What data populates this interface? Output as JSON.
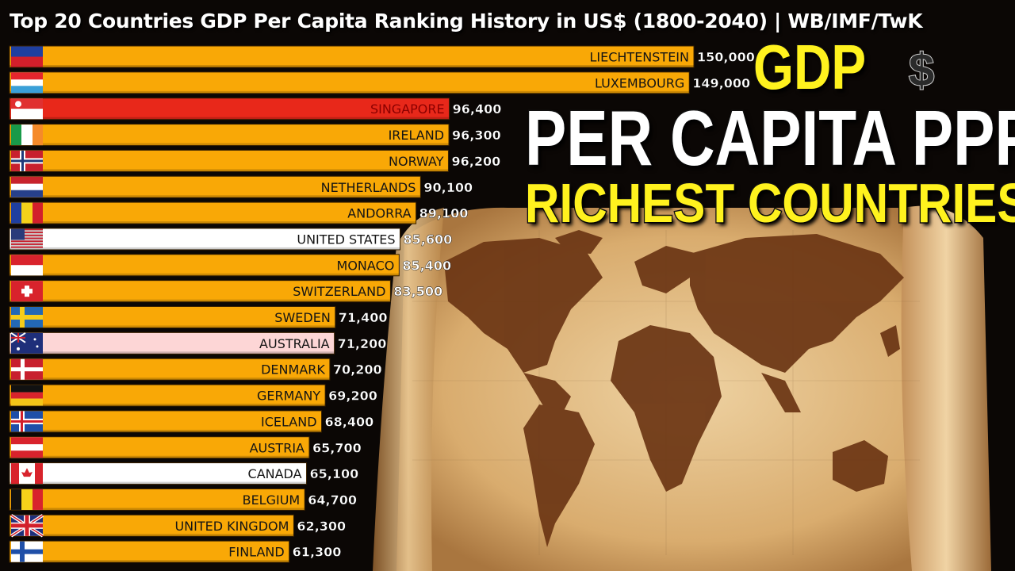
{
  "title": "Top 20 Countries GDP Per Capita Ranking History in US$ (1800-2040) | WB/IMF/TwK",
  "overlay": {
    "line1": "GDP",
    "line2": "PER CAPITA PPP",
    "line3": "RICHEST COUNTRIES",
    "symbol": "$"
  },
  "chart_data": {
    "type": "bar",
    "orientation": "horizontal",
    "title": "Top 20 Countries GDP Per Capita Ranking History in US$ (1800-2040) | WB/IMF/TwK",
    "categories": [
      "LIECHTENSTEIN",
      "LUXEMBOURG",
      "SINGAPORE",
      "IRELAND",
      "NORWAY",
      "NETHERLANDS",
      "ANDORRA",
      "UNITED STATES",
      "MONACO",
      "SWITZERLAND",
      "SWEDEN",
      "AUSTRALIA",
      "DENMARK",
      "GERMANY",
      "ICELAND",
      "AUSTRIA",
      "CANADA",
      "BELGIUM",
      "UNITED KINGDOM",
      "FINLAND"
    ],
    "values": [
      150000,
      149000,
      96400,
      96300,
      96200,
      90100,
      89100,
      85600,
      85400,
      83500,
      71400,
      71200,
      70200,
      69200,
      68400,
      65700,
      65100,
      64700,
      62300,
      61300
    ],
    "value_labels": [
      "150,000",
      "149,000",
      "96,400",
      "96,300",
      "96,200",
      "90,100",
      "89,100",
      "85,600",
      "85,400",
      "83,500",
      "71,400",
      "71,200",
      "70,200",
      "69,200",
      "68,400",
      "65,700",
      "65,100",
      "64,700",
      "62,300",
      "61,300"
    ],
    "bar_colors": [
      "#f9a806",
      "#f9a806",
      "#e8281a",
      "#f9a806",
      "#f9a806",
      "#f9a806",
      "#f9a806",
      "#ffffff",
      "#f9a806",
      "#f9a806",
      "#f9a806",
      "#fdd6d6",
      "#f9a806",
      "#f9a806",
      "#f9a806",
      "#f9a806",
      "#ffffff",
      "#f9a806",
      "#f9a806",
      "#f9a806"
    ],
    "flag_icons": [
      "liechtenstein-flag-icon",
      "luxembourg-flag-icon",
      "singapore-flag-icon",
      "ireland-flag-icon",
      "norway-flag-icon",
      "netherlands-flag-icon",
      "andorra-flag-icon",
      "united-states-flag-icon",
      "monaco-flag-icon",
      "switzerland-flag-icon",
      "sweden-flag-icon",
      "australia-flag-icon",
      "denmark-flag-icon",
      "germany-flag-icon",
      "iceland-flag-icon",
      "austria-flag-icon",
      "canada-flag-icon",
      "belgium-flag-icon",
      "united-kingdom-flag-icon",
      "finland-flag-icon"
    ],
    "xlim": [
      0,
      150000
    ],
    "grid": false,
    "legend": "none"
  }
}
